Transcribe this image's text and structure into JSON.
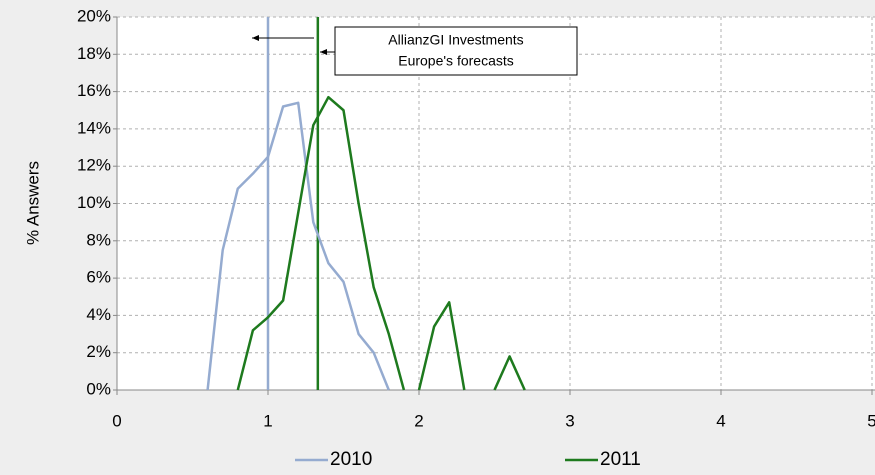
{
  "chart_data": {
    "type": "line",
    "y_label": "% Answers",
    "xlim": [
      0,
      5
    ],
    "xticks": [
      0,
      1,
      2,
      3,
      4,
      5
    ],
    "ylim": [
      0,
      20
    ],
    "yticks": [
      {
        "value": 0,
        "label": "0%"
      },
      {
        "value": 2,
        "label": "2%"
      },
      {
        "value": 4,
        "label": "4%"
      },
      {
        "value": 6,
        "label": "6%"
      },
      {
        "value": 8,
        "label": "8%"
      },
      {
        "value": 10,
        "label": "10%"
      },
      {
        "value": 12,
        "label": "12%"
      },
      {
        "value": 14,
        "label": "14%"
      },
      {
        "value": 16,
        "label": "16%"
      },
      {
        "value": 18,
        "label": "18%"
      },
      {
        "value": 20,
        "label": "20%"
      }
    ],
    "grid": true,
    "legend": "bottom",
    "series": [
      {
        "name": "2010",
        "color": "#95abd0",
        "x": [
          0.6,
          0.7,
          0.8,
          0.9,
          1.0,
          1.1,
          1.2,
          1.3,
          1.4,
          1.5,
          1.6,
          1.7,
          1.8
        ],
        "values": [
          0,
          7.5,
          10.8,
          11.6,
          12.5,
          15.2,
          15.4,
          9,
          6.8,
          5.8,
          3,
          2,
          0
        ]
      },
      {
        "name": "2011",
        "color": "#1e7a1e",
        "x": [
          0.8,
          0.9,
          1.0,
          1.1,
          1.2,
          1.3,
          1.4,
          1.5,
          1.6,
          1.7,
          1.8,
          1.9,
          1.95,
          2.0,
          2.1,
          2.2,
          2.3,
          2.4,
          2.5,
          2.6,
          2.7
        ],
        "values": [
          0,
          3.2,
          3.9,
          4.8,
          9.5,
          14.2,
          15.7,
          15,
          10,
          5.5,
          3,
          0,
          null,
          0,
          3.4,
          4.7,
          0,
          null,
          0,
          1.8,
          0
        ]
      }
    ],
    "forecasts": [
      {
        "x": 1.0,
        "color": "#95abd0"
      },
      {
        "x": 1.33,
        "color": "#1e7a1e"
      }
    ],
    "annotation": [
      "AllianzGI Investments",
      "Europe's forecasts"
    ]
  }
}
